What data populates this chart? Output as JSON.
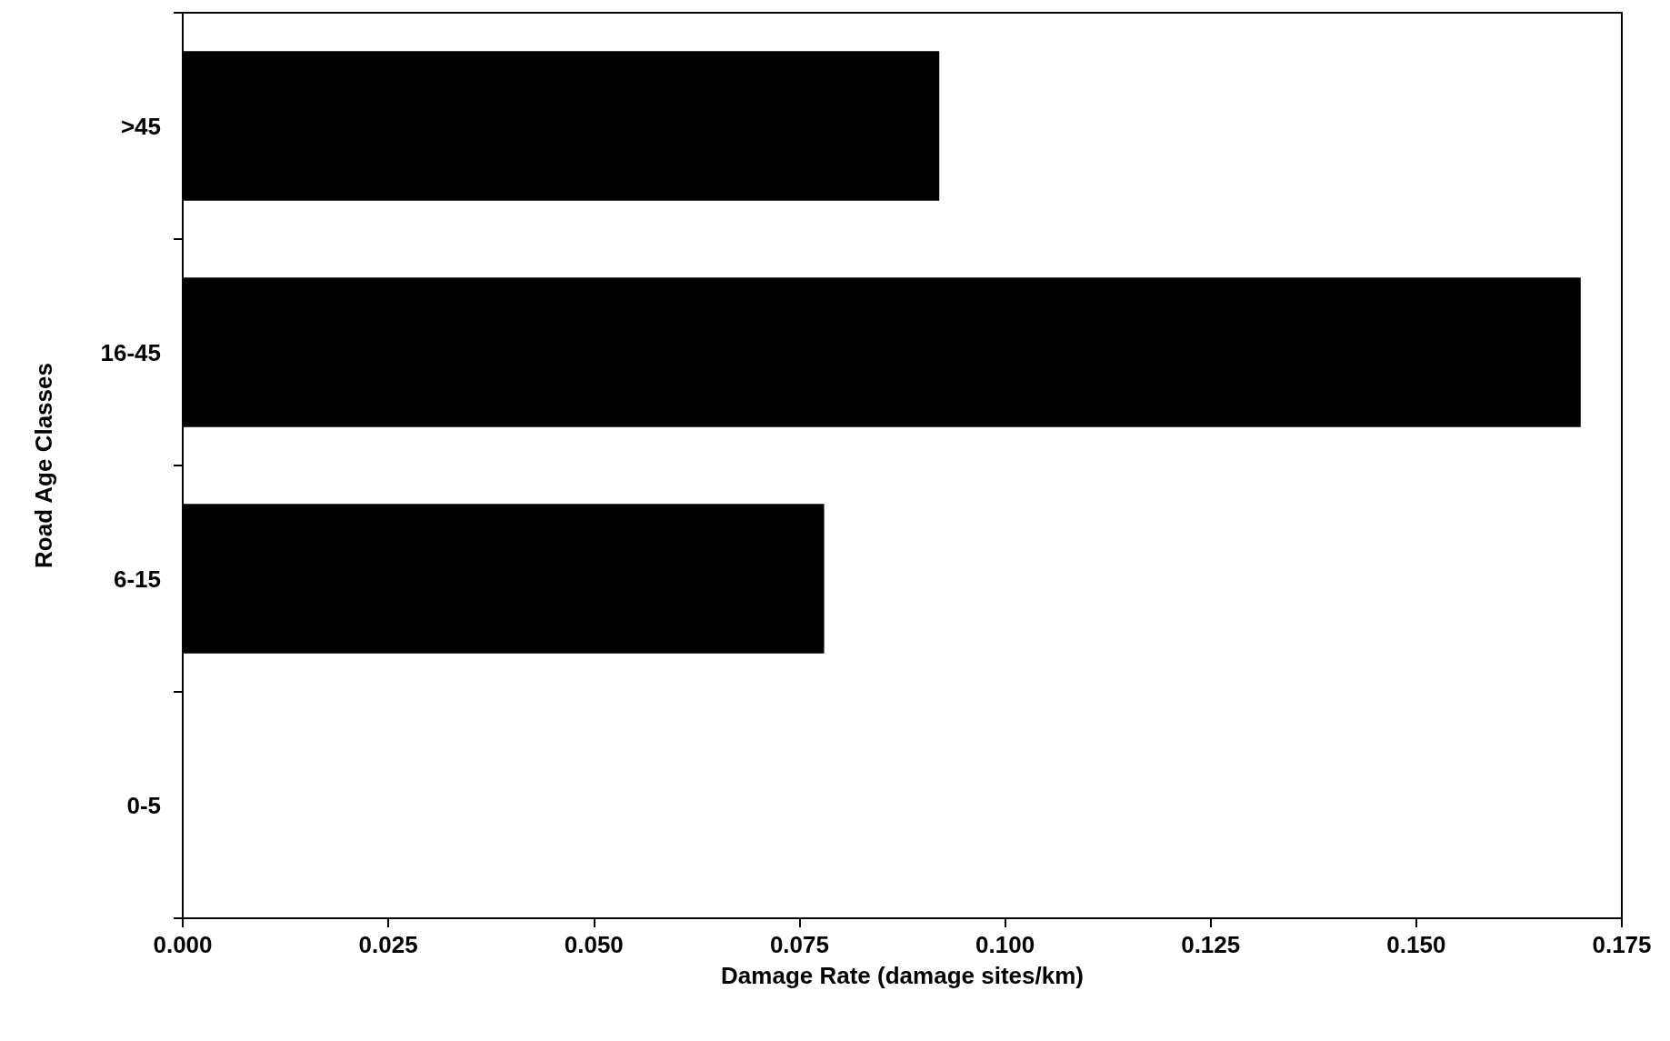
{
  "chart_data": {
    "type": "bar",
    "orientation": "horizontal",
    "xlabel": "Damage Rate (damage sites/km)",
    "ylabel": "Road Age Classes",
    "categories": [
      ">45",
      "16-45",
      "6-15",
      "0-5"
    ],
    "values": [
      0.092,
      0.17,
      0.078,
      0
    ],
    "color": "#000000",
    "xlim": [
      0,
      0.175
    ],
    "xticks": [
      {
        "value": 0,
        "label": "0.000"
      },
      {
        "value": 0.025,
        "label": "0.025"
      },
      {
        "value": 0.05,
        "label": "0.050"
      },
      {
        "value": 0.075,
        "label": "0.075"
      },
      {
        "value": 0.1,
        "label": "0.100"
      },
      {
        "value": 0.125,
        "label": "0.125"
      },
      {
        "value": 0.15,
        "label": "0.150"
      },
      {
        "value": 0.175,
        "label": "0.175"
      }
    ],
    "grid": false
  }
}
